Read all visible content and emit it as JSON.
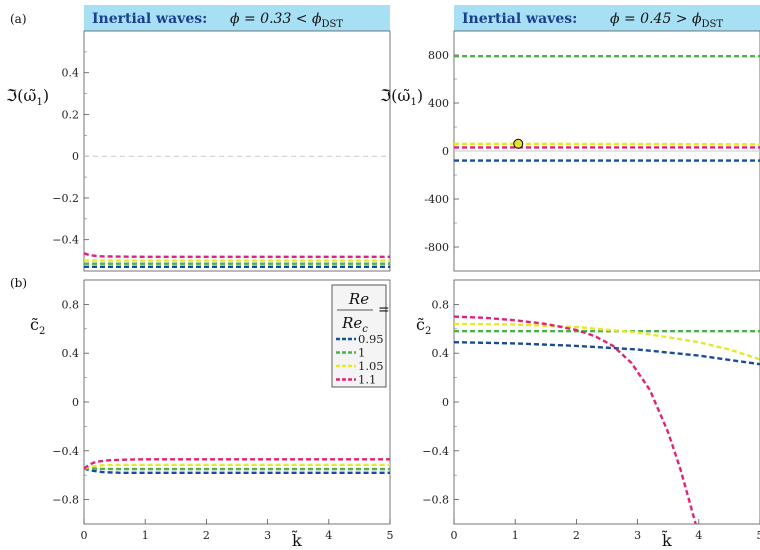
{
  "panel_labels": {
    "a": "(a)",
    "b": "(b)"
  },
  "colors": {
    "re095": "#1a4a9a",
    "re1": "#4fb04f",
    "re105": "#e8e82a",
    "re11": "#e0237a",
    "title_bg": "#a7dff5",
    "title_text": "#1b3f8f"
  },
  "axis_x_label": "k̃",
  "legend": {
    "title_num": "Re",
    "title_den": "Re",
    "title_den_sub": "c",
    "title_eq": "=",
    "entries": [
      "0.95",
      "1",
      "1.05",
      "1.1"
    ]
  },
  "chart_data": [
    {
      "id": "top-left",
      "type": "line",
      "title_prefix": "Inertial waves:",
      "title_math": "ϕ = 0.33 < ϕ",
      "title_sub": "DST",
      "ylabel": "ℑ(ω̃",
      "ylabel_sub": "1",
      "ylabel_suffix": ")",
      "xlim": [
        0,
        5
      ],
      "ylim": [
        -0.55,
        0.6
      ],
      "xticks": [],
      "yticks": [
        0.4,
        0.2,
        0,
        -0.2,
        -0.4
      ],
      "ytick_labels": [
        "0.4",
        "0.2",
        "0",
        "−0.2",
        "−0.4"
      ],
      "minor_yticks": [
        0.5,
        0.3,
        0.1,
        -0.1,
        -0.3,
        -0.5
      ],
      "zero_line": true,
      "series": [
        {
          "color_key": "re095",
          "x": [
            0,
            1,
            2,
            3,
            4,
            5
          ],
          "y": [
            -0.53,
            -0.53,
            -0.53,
            -0.53,
            -0.53,
            -0.53
          ]
        },
        {
          "color_key": "re1",
          "x": [
            0,
            1,
            2,
            3,
            4,
            5
          ],
          "y": [
            -0.515,
            -0.515,
            -0.515,
            -0.515,
            -0.515,
            -0.515
          ]
        },
        {
          "color_key": "re105",
          "x": [
            0,
            1,
            2,
            3,
            4,
            5
          ],
          "y": [
            -0.5,
            -0.5,
            -0.5,
            -0.5,
            -0.5,
            -0.5
          ]
        },
        {
          "color_key": "re11",
          "x": [
            0,
            0.1,
            0.3,
            1,
            2,
            3,
            4,
            5
          ],
          "y": [
            -0.465,
            -0.475,
            -0.48,
            -0.482,
            -0.482,
            -0.482,
            -0.482,
            -0.482
          ]
        }
      ]
    },
    {
      "id": "top-right",
      "type": "line",
      "title_prefix": "Inertial waves:",
      "title_math": "ϕ = 0.45 > ϕ",
      "title_sub": "DST",
      "ylabel": "ℑ(ω̃",
      "ylabel_sub": "1",
      "ylabel_suffix": ")",
      "xlim": [
        0,
        5
      ],
      "ylim": [
        -1000,
        1000
      ],
      "xticks": [],
      "yticks": [
        800,
        400,
        0,
        -400,
        -800
      ],
      "ytick_labels": [
        "800",
        "400",
        "0",
        "-400",
        "-800"
      ],
      "minor_yticks": [
        600,
        200,
        -200,
        -600
      ],
      "zero_line": true,
      "series": [
        {
          "color_key": "re095",
          "x": [
            0,
            1,
            2,
            3,
            4,
            5
          ],
          "y": [
            -80,
            -80,
            -80,
            -80,
            -80,
            -80
          ]
        },
        {
          "color_key": "re1",
          "x": [
            0,
            1,
            2,
            3,
            4,
            5
          ],
          "y": [
            790,
            790,
            790,
            790,
            790,
            790
          ]
        },
        {
          "color_key": "re105",
          "x": [
            0,
            1,
            2,
            3,
            4,
            5
          ],
          "y": [
            60,
            60,
            59,
            58,
            57,
            56
          ]
        },
        {
          "color_key": "re11",
          "x": [
            0,
            1,
            2,
            3,
            4,
            5
          ],
          "y": [
            30,
            30,
            30,
            30,
            30,
            30
          ]
        }
      ],
      "marker": {
        "x": 1.05,
        "y": 60,
        "fill": "#e8e030",
        "stroke": "#000000"
      }
    },
    {
      "id": "bottom-left",
      "type": "line",
      "ylabel": "c̃",
      "ylabel_sub": "2",
      "xlim": [
        0,
        5
      ],
      "ylim": [
        -1,
        1
      ],
      "xticks": [
        0,
        1,
        2,
        3,
        4,
        5
      ],
      "xtick_labels": [
        "0",
        "1",
        "2",
        "3",
        "4",
        "5"
      ],
      "yticks": [
        0.8,
        0.4,
        0,
        -0.4,
        -0.8
      ],
      "ytick_labels": [
        "0.8",
        "0.4",
        "0",
        "−0.4",
        "−0.8"
      ],
      "minor_yticks": [
        0.6,
        0.2,
        -0.2,
        -0.6
      ],
      "series": [
        {
          "color_key": "re095",
          "x": [
            0,
            0.1,
            0.3,
            0.6,
            1,
            2,
            3,
            4,
            5
          ],
          "y": [
            -0.545,
            -0.56,
            -0.575,
            -0.58,
            -0.58,
            -0.58,
            -0.58,
            -0.58,
            -0.58
          ]
        },
        {
          "color_key": "re1",
          "x": [
            0,
            0.1,
            0.3,
            0.6,
            1,
            2,
            3,
            4,
            5
          ],
          "y": [
            -0.545,
            -0.545,
            -0.548,
            -0.55,
            -0.55,
            -0.55,
            -0.55,
            -0.55,
            -0.55
          ]
        },
        {
          "color_key": "re105",
          "x": [
            0,
            0.1,
            0.3,
            0.6,
            1,
            2,
            3,
            4,
            5
          ],
          "y": [
            -0.545,
            -0.53,
            -0.518,
            -0.515,
            -0.515,
            -0.515,
            -0.515,
            -0.515,
            -0.515
          ]
        },
        {
          "color_key": "re11",
          "x": [
            0,
            0.1,
            0.2,
            0.4,
            0.7,
            1,
            2,
            3,
            4,
            5
          ],
          "y": [
            -0.545,
            -0.51,
            -0.49,
            -0.478,
            -0.472,
            -0.47,
            -0.47,
            -0.47,
            -0.47,
            -0.47
          ]
        }
      ]
    },
    {
      "id": "bottom-right",
      "type": "line",
      "ylabel": "c̃",
      "ylabel_sub": "2",
      "xlim": [
        0,
        5
      ],
      "ylim": [
        -1,
        1
      ],
      "xticks": [
        0,
        1,
        2,
        3,
        4,
        5
      ],
      "xtick_labels": [
        "0",
        "1",
        "2",
        "3",
        "4",
        "5"
      ],
      "yticks": [
        0.8,
        0.4,
        0,
        -0.4,
        -0.8
      ],
      "ytick_labels": [
        "0.8",
        "0.4",
        "0",
        "−0.4",
        "−0.8"
      ],
      "minor_yticks": [
        0.6,
        0.2,
        -0.2,
        -0.6
      ],
      "series": [
        {
          "color_key": "re095",
          "x": [
            0,
            1,
            2,
            3,
            4,
            5
          ],
          "y": [
            0.49,
            0.48,
            0.46,
            0.43,
            0.38,
            0.31
          ]
        },
        {
          "color_key": "re1",
          "x": [
            0,
            1,
            2,
            3,
            4,
            5
          ],
          "y": [
            0.58,
            0.58,
            0.58,
            0.58,
            0.58,
            0.58
          ]
        },
        {
          "color_key": "re105",
          "x": [
            0,
            1,
            2,
            3,
            3.5,
            4,
            4.5,
            5
          ],
          "y": [
            0.64,
            0.635,
            0.615,
            0.57,
            0.53,
            0.49,
            0.43,
            0.35
          ]
        },
        {
          "color_key": "re11",
          "x": [
            0,
            0.5,
            1,
            1.5,
            2,
            2.3,
            2.6,
            2.9,
            3.2,
            3.5,
            3.7,
            3.85,
            3.95
          ],
          "y": [
            0.7,
            0.69,
            0.67,
            0.64,
            0.59,
            0.54,
            0.46,
            0.32,
            0.1,
            -0.25,
            -0.55,
            -0.82,
            -1.0
          ]
        }
      ]
    }
  ]
}
